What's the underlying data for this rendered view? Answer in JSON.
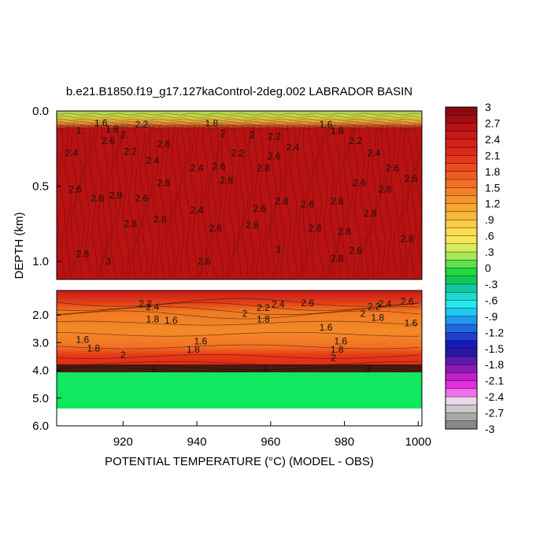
{
  "chart_data": {
    "type": "heatmap",
    "title": "b.e21.B1850.f19_g17.127kaControl-2deg.002 LABRADOR BASIN",
    "xlabel": "POTENTIAL TEMPERATURE (°C) (MODEL - OBS)",
    "ylabel": "DEPTH (km)",
    "xlim": [
      902,
      1001
    ],
    "x_ticks": [
      "920",
      "940",
      "960",
      "980",
      "1000"
    ],
    "upper_panel": {
      "ylim": [
        0.0,
        1.12
      ],
      "y_ticks": [
        "0.0",
        "0.5",
        "1.0"
      ],
      "y_tick_values": [
        0.0,
        0.5,
        1.0
      ]
    },
    "lower_panel": {
      "ylim": [
        1.12,
        6.0
      ],
      "y_ticks": [
        "2.0",
        "3.0",
        "4.0",
        "5.0",
        "6.0"
      ],
      "y_tick_values": [
        2.0,
        3.0,
        4.0,
        5.0,
        6.0
      ]
    },
    "colorbar": {
      "ticks": [
        "3",
        "2.7",
        "2.4",
        "2.1",
        "1.8",
        "1.5",
        "1.2",
        ".9",
        ".6",
        ".3",
        "0",
        "-.3",
        "-.6",
        "-.9",
        "-1.2",
        "-1.5",
        "-1.8",
        "-2.1",
        "-2.4",
        "-2.7",
        "-3"
      ],
      "colors": [
        "#8b0a10",
        "#a10d12",
        "#b81215",
        "#c81818",
        "#d42018",
        "#dc2a1a",
        "#e4381a",
        "#ea4a1c",
        "#ef5c20",
        "#f26e24",
        "#f58228",
        "#f7942e",
        "#f8a634",
        "#f9b83c",
        "#facb44",
        "#fbdc4e",
        "#f4e85c",
        "#d8ec5c",
        "#a8e858",
        "#5ee04e",
        "#22d83e",
        "#10c85a",
        "#10c8a0",
        "#20d8d0",
        "#28e8f0",
        "#20c8f0",
        "#2098f0",
        "#2068e0",
        "#2040d0",
        "#1a1ab8",
        "#2818a0",
        "#5a1aa8",
        "#8a1ab8",
        "#c020c8",
        "#e030e0",
        "#f070f0",
        "#e8d8e8",
        "#c8c8c8",
        "#a8a8a8",
        "#888888"
      ]
    },
    "contour_labels": {
      "upper": [
        {
          "x": 908,
          "y": 0.13,
          "text": "1"
        },
        {
          "x": 914,
          "y": 0.08,
          "text": "1.6"
        },
        {
          "x": 917,
          "y": 0.12,
          "text": "1.8"
        },
        {
          "x": 920,
          "y": 0.16,
          "text": "2"
        },
        {
          "x": 925,
          "y": 0.09,
          "text": "2.2"
        },
        {
          "x": 906,
          "y": 0.28,
          "text": "2.4"
        },
        {
          "x": 916,
          "y": 0.2,
          "text": "2.6"
        },
        {
          "x": 922,
          "y": 0.27,
          "text": "2.2"
        },
        {
          "x": 928,
          "y": 0.33,
          "text": "2.4"
        },
        {
          "x": 931,
          "y": 0.22,
          "text": "2.6"
        },
        {
          "x": 944,
          "y": 0.08,
          "text": "1.8"
        },
        {
          "x": 947,
          "y": 0.15,
          "text": "2"
        },
        {
          "x": 951,
          "y": 0.28,
          "text": "2.2"
        },
        {
          "x": 946,
          "y": 0.37,
          "text": "2.6"
        },
        {
          "x": 955,
          "y": 0.16,
          "text": "2"
        },
        {
          "x": 961,
          "y": 0.17,
          "text": "2.2"
        },
        {
          "x": 961,
          "y": 0.3,
          "text": "2.6"
        },
        {
          "x": 966,
          "y": 0.24,
          "text": "2.4"
        },
        {
          "x": 975,
          "y": 0.09,
          "text": "1.6"
        },
        {
          "x": 978,
          "y": 0.13,
          "text": "1.8"
        },
        {
          "x": 983,
          "y": 0.2,
          "text": "2.2"
        },
        {
          "x": 988,
          "y": 0.28,
          "text": "2.4"
        },
        {
          "x": 993,
          "y": 0.38,
          "text": "2.6"
        },
        {
          "x": 907,
          "y": 0.52,
          "text": "2.6"
        },
        {
          "x": 913,
          "y": 0.58,
          "text": "2.8"
        },
        {
          "x": 918,
          "y": 0.56,
          "text": "2.8"
        },
        {
          "x": 925,
          "y": 0.58,
          "text": "2.6"
        },
        {
          "x": 931,
          "y": 0.48,
          "text": "2.8"
        },
        {
          "x": 940,
          "y": 0.38,
          "text": "2.4"
        },
        {
          "x": 948,
          "y": 0.46,
          "text": "2.8"
        },
        {
          "x": 958,
          "y": 0.38,
          "text": "2.8"
        },
        {
          "x": 963,
          "y": 0.6,
          "text": "2.8"
        },
        {
          "x": 970,
          "y": 0.62,
          "text": "2.6"
        },
        {
          "x": 978,
          "y": 0.6,
          "text": "2.8"
        },
        {
          "x": 984,
          "y": 0.48,
          "text": "2.6"
        },
        {
          "x": 991,
          "y": 0.52,
          "text": "2.8"
        },
        {
          "x": 998,
          "y": 0.45,
          "text": "2.6"
        },
        {
          "x": 930,
          "y": 0.72,
          "text": "2.8"
        },
        {
          "x": 940,
          "y": 0.66,
          "text": "2.4"
        },
        {
          "x": 945,
          "y": 0.78,
          "text": "2.6"
        },
        {
          "x": 955,
          "y": 0.76,
          "text": "2.8"
        },
        {
          "x": 957,
          "y": 0.65,
          "text": "2.6"
        },
        {
          "x": 972,
          "y": 0.78,
          "text": "2.8"
        },
        {
          "x": 980,
          "y": 0.8,
          "text": "2.8"
        },
        {
          "x": 987,
          "y": 0.68,
          "text": "2.8"
        },
        {
          "x": 997,
          "y": 0.85,
          "text": "2.8"
        },
        {
          "x": 922,
          "y": 0.75,
          "text": "2.8"
        },
        {
          "x": 909,
          "y": 0.95,
          "text": "2.8"
        },
        {
          "x": 916,
          "y": 1.0,
          "text": "3"
        },
        {
          "x": 942,
          "y": 1.0,
          "text": "2.6"
        },
        {
          "x": 962,
          "y": 0.92,
          "text": "3"
        },
        {
          "x": 978,
          "y": 0.98,
          "text": "2.8"
        },
        {
          "x": 983,
          "y": 0.93,
          "text": "2.6"
        }
      ],
      "lower": [
        {
          "x": 926,
          "y": 1.6,
          "text": "2.2"
        },
        {
          "x": 928,
          "y": 1.72,
          "text": "2.4"
        },
        {
          "x": 928,
          "y": 2.15,
          "text": "1.8"
        },
        {
          "x": 933,
          "y": 2.2,
          "text": "1.6"
        },
        {
          "x": 909,
          "y": 2.9,
          "text": "1.6"
        },
        {
          "x": 912,
          "y": 3.2,
          "text": "1.8"
        },
        {
          "x": 920,
          "y": 3.45,
          "text": "2"
        },
        {
          "x": 941,
          "y": 2.95,
          "text": "1.6"
        },
        {
          "x": 939,
          "y": 3.25,
          "text": "1.8"
        },
        {
          "x": 953,
          "y": 1.95,
          "text": "2"
        },
        {
          "x": 958,
          "y": 1.75,
          "text": "2.2"
        },
        {
          "x": 962,
          "y": 1.62,
          "text": "2.4"
        },
        {
          "x": 970,
          "y": 1.58,
          "text": "2.6"
        },
        {
          "x": 958,
          "y": 2.15,
          "text": "1.8"
        },
        {
          "x": 975,
          "y": 2.45,
          "text": "1.6"
        },
        {
          "x": 979,
          "y": 2.95,
          "text": "1.6"
        },
        {
          "x": 978,
          "y": 3.25,
          "text": "1.8"
        },
        {
          "x": 977,
          "y": 3.55,
          "text": "2"
        },
        {
          "x": 985,
          "y": 1.95,
          "text": "2"
        },
        {
          "x": 988,
          "y": 1.7,
          "text": "2.2"
        },
        {
          "x": 989,
          "y": 2.1,
          "text": "1.8"
        },
        {
          "x": 991,
          "y": 1.6,
          "text": "2.4"
        },
        {
          "x": 997,
          "y": 1.52,
          "text": "2.6"
        },
        {
          "x": 998,
          "y": 2.3,
          "text": "1.6"
        },
        {
          "x": 928,
          "y": 3.95,
          "text": "-3"
        },
        {
          "x": 958,
          "y": 3.95,
          "text": "-3"
        },
        {
          "x": 986,
          "y": 3.95,
          "text": "-3"
        }
      ]
    }
  }
}
